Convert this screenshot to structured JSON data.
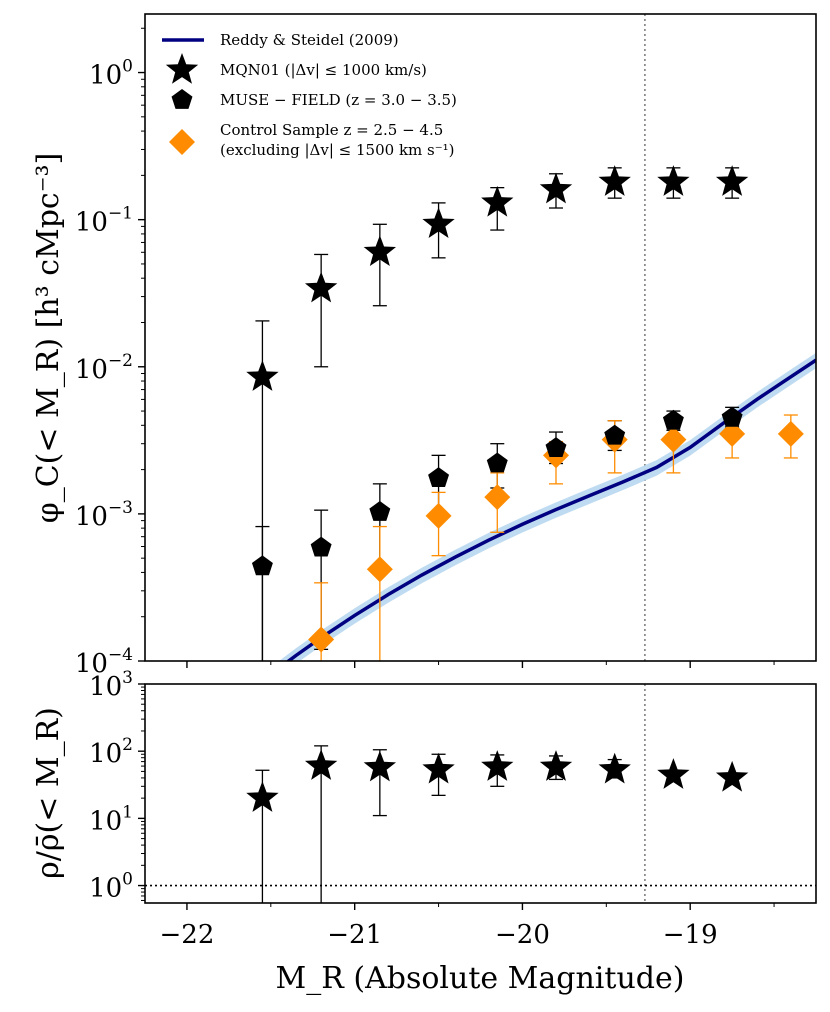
{
  "chart_data": [
    {
      "type": "scatter",
      "panel": "top",
      "title": "",
      "xlabel": "M_R (Absolute Magnitude)",
      "ylabel": "φ_C(< M_R) [h³ cMpc⁻³]",
      "xlim": [
        -22.25,
        -18.25
      ],
      "ylim": [
        0.0001,
        2.5
      ],
      "yscale": "log",
      "grid": false,
      "legend_position": "top-left",
      "x_ticks": [
        -22,
        -21,
        -20,
        -19
      ],
      "x_tick_labels": [
        "−22",
        "−21",
        "−20",
        "−19"
      ],
      "y_ticks": [
        0.0001,
        0.001,
        0.01,
        0.1,
        1
      ],
      "y_tick_labels": [
        {
          "base": "10",
          "exp": "−4"
        },
        {
          "base": "10",
          "exp": "−3"
        },
        {
          "base": "10",
          "exp": "−2"
        },
        {
          "base": "10",
          "exp": "−1"
        },
        {
          "base": "10",
          "exp": "0"
        }
      ],
      "vline_x": -19.27,
      "series": [
        {
          "name": "Reddy & Steidel (2009)",
          "kind": "line",
          "color": "#000080",
          "band_color": "#b7d7f0",
          "x": [
            -21.55,
            -21.45,
            -21.35,
            -21.2,
            -21.0,
            -20.8,
            -20.6,
            -20.4,
            -20.2,
            -20.0,
            -19.8,
            -19.6,
            -19.4,
            -19.2,
            -19.0,
            -18.8,
            -18.6,
            -18.4,
            -18.25
          ],
          "y": [
            7.2e-05,
            8.95e-05,
            0.000109,
            0.000144,
            0.000204,
            0.000283,
            0.000384,
            0.000509,
            0.000664,
            0.00085,
            0.00107,
            0.00133,
            0.00165,
            0.00207,
            0.00283,
            0.00415,
            0.00602,
            0.00855,
            0.0111
          ]
        },
        {
          "name": "MQN01 (|Δv| ≤ 1000 km/s)",
          "kind": "star",
          "color": "#000000",
          "x": [
            -21.55,
            -21.2,
            -20.85,
            -20.5,
            -20.15,
            -19.8,
            -19.45,
            -19.1,
            -18.75
          ],
          "y": [
            0.0085,
            0.034,
            0.06,
            0.093,
            0.13,
            0.16,
            0.18,
            0.18,
            0.18
          ],
          "yerr_low": [
            7e-05,
            0.01,
            0.026,
            0.055,
            0.085,
            0.12,
            0.14,
            0.14,
            0.14
          ],
          "yerr_high": [
            0.0205,
            0.058,
            0.093,
            0.13,
            0.165,
            0.205,
            0.225,
            0.225,
            0.225
          ]
        },
        {
          "name": "MUSE − FIELD (z = 3.0 − 3.5)",
          "kind": "pentagon",
          "color": "#000000",
          "x": [
            -21.55,
            -21.2,
            -20.85,
            -20.5,
            -20.15,
            -19.8,
            -19.45,
            -19.1,
            -18.75
          ],
          "y": [
            0.00044,
            0.00059,
            0.00103,
            0.00175,
            0.0022,
            0.0028,
            0.0034,
            0.0043,
            0.0045
          ],
          "yerr_low": [
            7e-05,
            0.00012,
            0.00045,
            0.001,
            0.0015,
            0.0022,
            0.0027,
            0.0037,
            0.0039
          ],
          "yerr_high": [
            0.00082,
            0.00106,
            0.0016,
            0.0025,
            0.003,
            0.0036,
            0.0043,
            0.005,
            0.0053
          ]
        },
        {
          "name": "Control Sample z = 2.5 − 4.5",
          "name_line2": "(excluding |Δv| ≤ 1500 km s⁻¹)",
          "kind": "diamond",
          "color": "#ff8c00",
          "x": [
            -21.2,
            -20.85,
            -20.5,
            -20.15,
            -19.8,
            -19.45,
            -19.1,
            -18.75,
            -18.4
          ],
          "y": [
            0.00014,
            0.00042,
            0.00097,
            0.0013,
            0.0025,
            0.0032,
            0.0032,
            0.0035,
            0.0035
          ],
          "yerr_low": [
            7e-05,
            7e-05,
            0.00052,
            0.00075,
            0.0016,
            0.0019,
            0.0019,
            0.0024,
            0.0024
          ],
          "yerr_high": [
            0.00034,
            0.00082,
            0.0014,
            0.0019,
            0.0031,
            0.0043,
            0.0043,
            0.0046,
            0.0047
          ]
        }
      ]
    },
    {
      "type": "scatter",
      "panel": "bottom",
      "title": "",
      "xlabel": "M_R (Absolute Magnitude)",
      "ylabel": "ρ/ρ̄(< M_R)",
      "xlim": [
        -22.25,
        -18.25
      ],
      "ylim": [
        0.55,
        1000
      ],
      "yscale": "log",
      "grid": false,
      "x_ticks": [
        -22,
        -21,
        -20,
        -19
      ],
      "x_tick_labels": [
        "−22",
        "−21",
        "−20",
        "−19"
      ],
      "y_ticks": [
        1,
        10,
        100,
        1000
      ],
      "y_tick_labels": [
        {
          "base": "10",
          "exp": "0"
        },
        {
          "base": "10",
          "exp": "1"
        },
        {
          "base": "10",
          "exp": "2"
        },
        {
          "base": "10",
          "exp": "3"
        }
      ],
      "hline_y": 1,
      "vline_x": -19.27,
      "series": [
        {
          "kind": "star",
          "color": "#000000",
          "x": [
            -21.55,
            -21.2,
            -20.85,
            -20.5,
            -20.15,
            -19.8,
            -19.45,
            -19.1,
            -18.75
          ],
          "y": [
            20,
            60,
            57,
            53,
            58,
            58,
            53,
            44,
            40
          ],
          "yerr_low": [
            0.4,
            0.4,
            11,
            22,
            30,
            38,
            40,
            44,
            40
          ],
          "yerr_high": [
            52,
            120,
            105,
            90,
            88,
            85,
            75,
            44,
            40
          ]
        }
      ]
    }
  ]
}
